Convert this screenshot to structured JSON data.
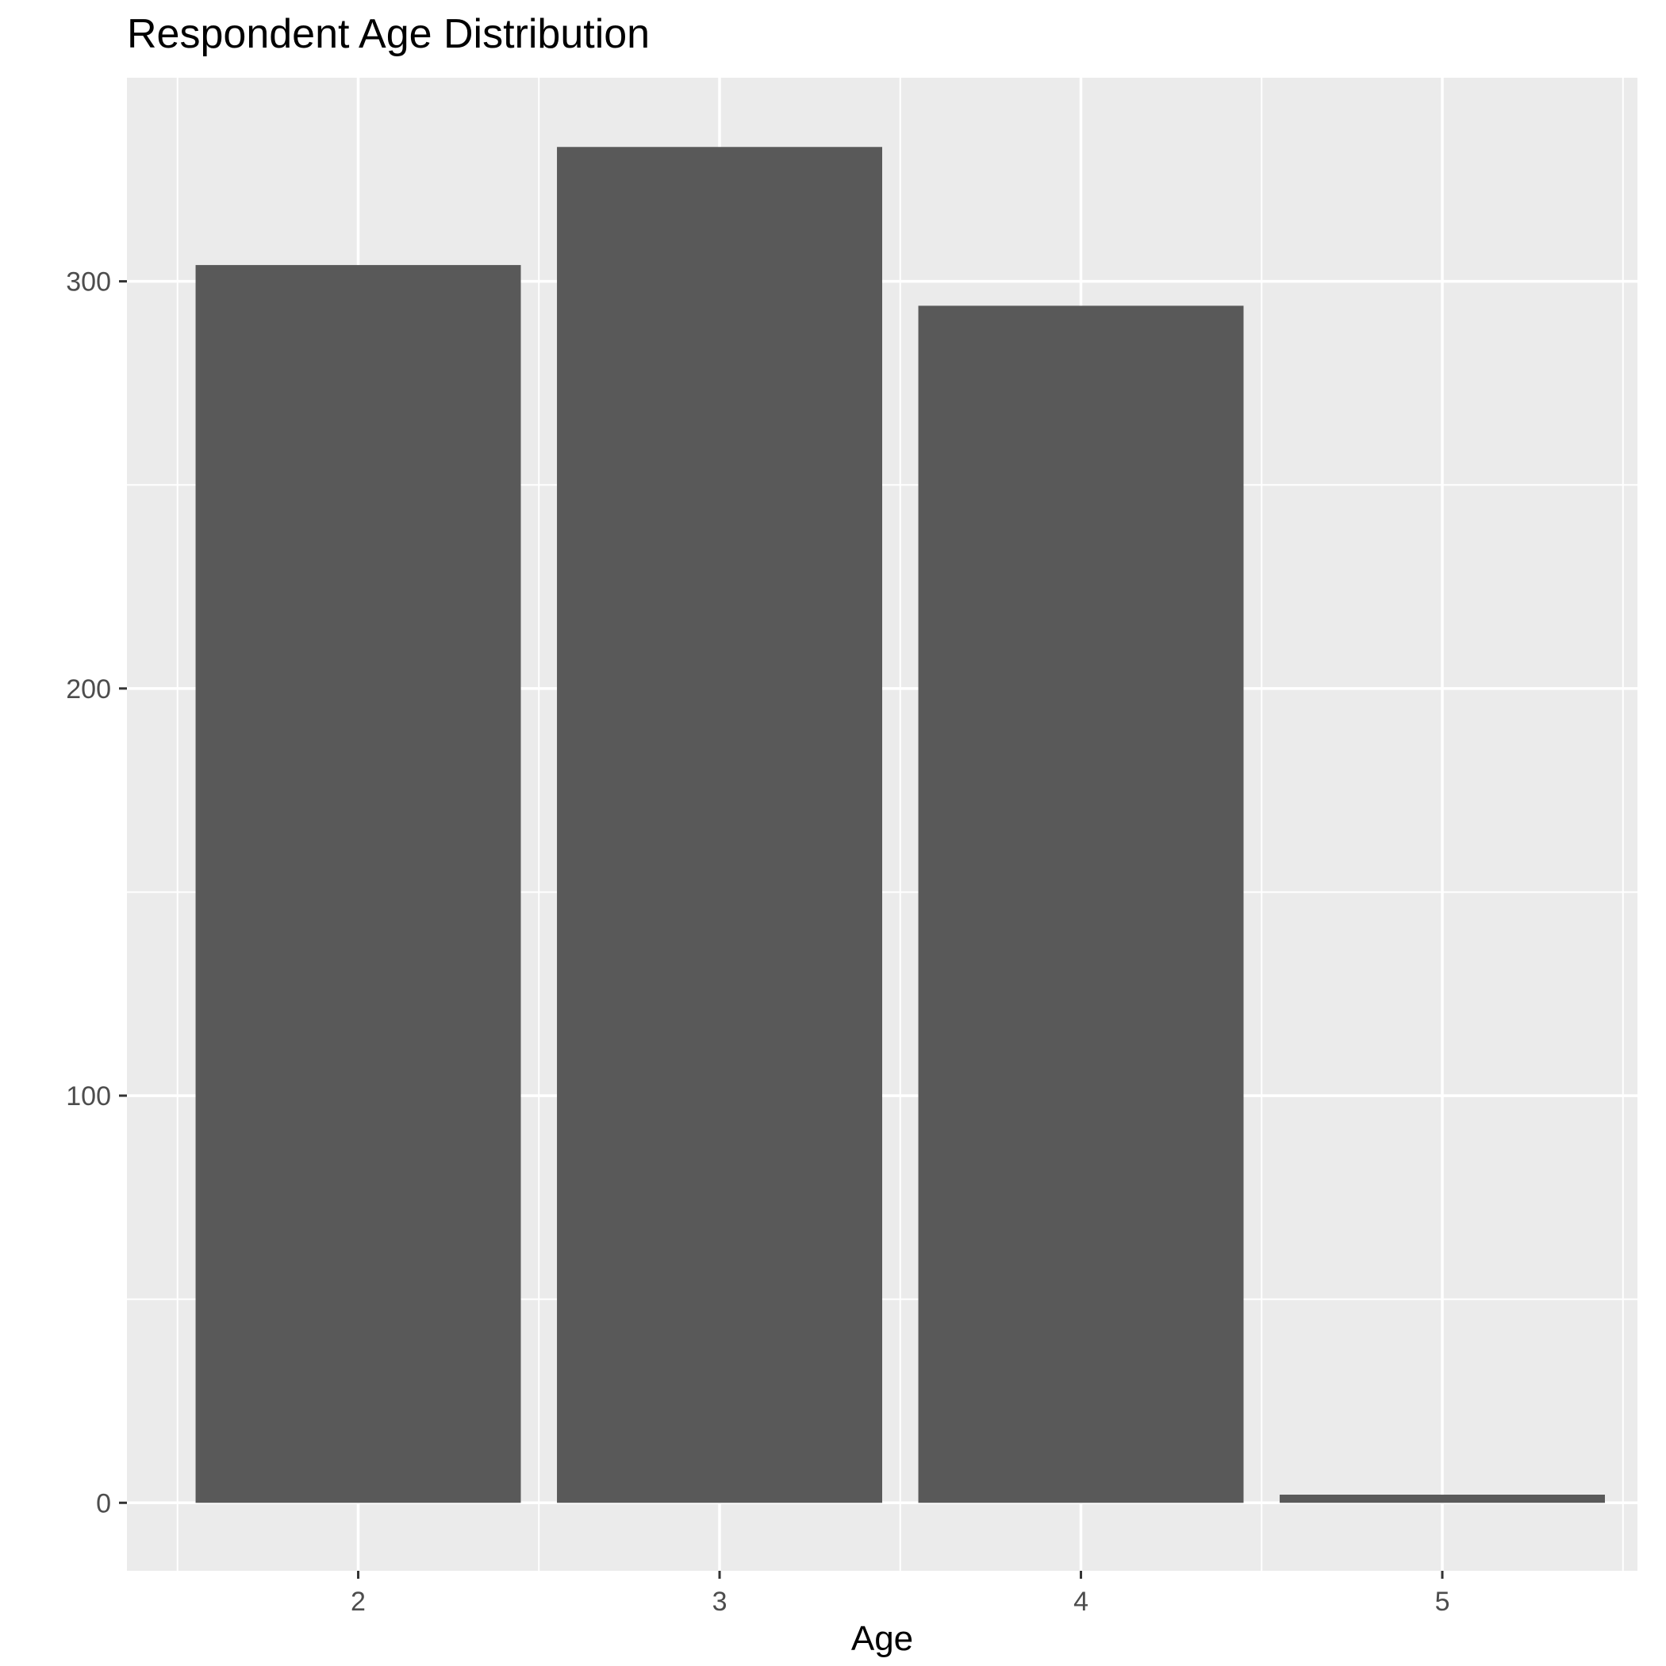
{
  "chart_data": {
    "type": "bar",
    "title": "Respondent Age Distribution",
    "xlabel": "Age",
    "ylabel": "",
    "categories": [
      "2",
      "3",
      "4",
      "5"
    ],
    "x": [
      2,
      3,
      4,
      5
    ],
    "values": [
      304,
      333,
      294,
      2
    ],
    "xlim": [
      1.36,
      5.54
    ],
    "ylim": [
      -16.7,
      350
    ],
    "y_ticks": [
      0,
      100,
      200,
      300
    ],
    "x_ticks": [
      2,
      3,
      4,
      5
    ],
    "grid": true,
    "legend": "none",
    "colors": {
      "bar": "#595959",
      "panel_background": "#ebebeb",
      "grid_line": "#ffffff",
      "tick_label": "#4d4d4d",
      "tick_mark": "#333333"
    }
  }
}
